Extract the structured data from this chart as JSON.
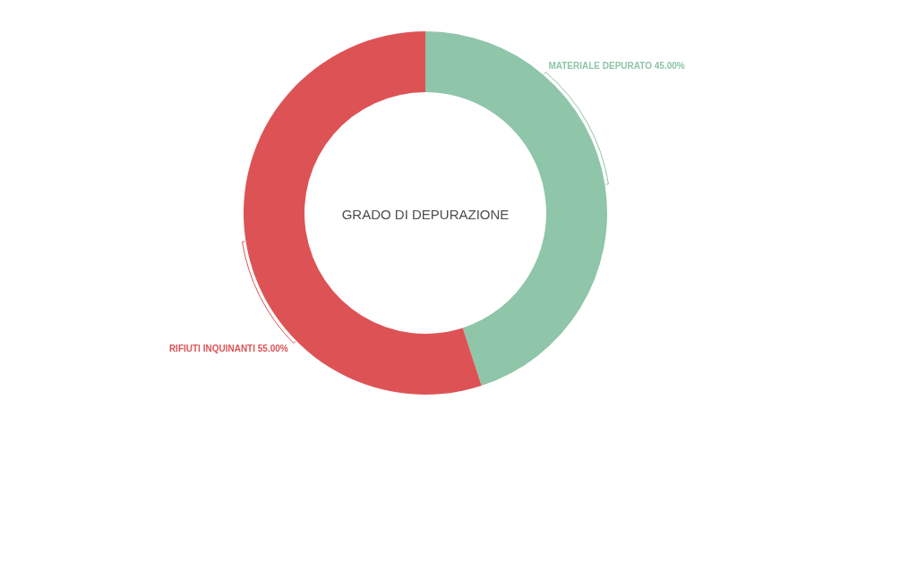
{
  "chart_data": {
    "type": "donut",
    "title": "GRADO DI DEPURAZIONE",
    "categories": [
      "MATERIALE DEPURATO",
      "RIFIUTI INQUINANTI"
    ],
    "values": [
      45,
      55
    ],
    "value_labels": [
      "45.00%",
      "55.00%"
    ],
    "colors": [
      "#8fc5a8",
      "#dd5355"
    ]
  }
}
